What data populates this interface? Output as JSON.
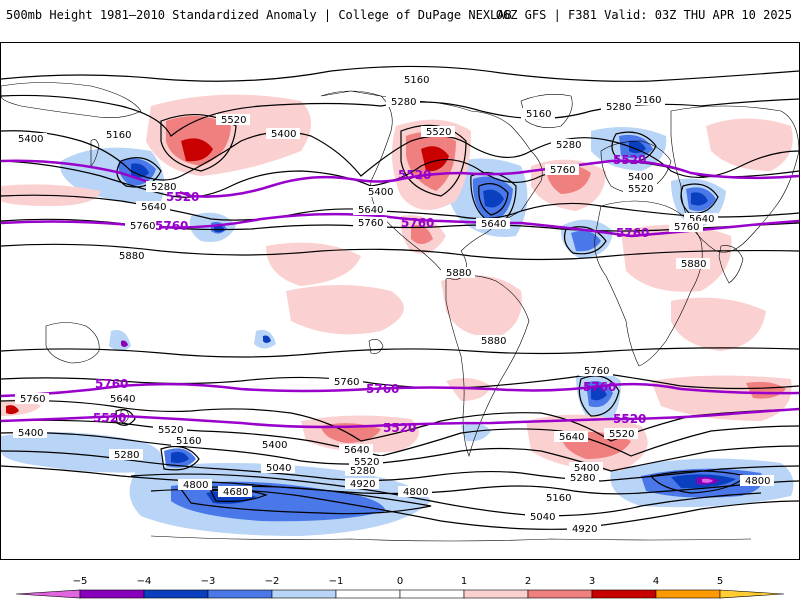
{
  "header": {
    "title": "500mb Height 1981–2010 Standardized Anomaly | College of DuPage NEXLAB",
    "run_info": "06Z GFS | F381 Valid: 03Z THU APR 10 2025"
  },
  "colors": {
    "neg5": "#e066e0",
    "neg4": "#8800bb",
    "neg3": "#0a3fc0",
    "neg2": "#4a78e8",
    "neg1": "#b8d4f6",
    "zero": "#ffffff",
    "pos1": "#fbd0d0",
    "pos2": "#f08080",
    "pos3": "#c80000",
    "pos4": "#ff9a00",
    "pos5": "#ffcc33",
    "contour": "#000000",
    "highlight": "#9900cc",
    "coast": "#000000"
  },
  "legend": {
    "ticks": [
      "−5",
      "−4",
      "−3",
      "−2",
      "−1",
      "0",
      "1",
      "2",
      "3",
      "4",
      "5"
    ]
  },
  "labels": {
    "c5160": "5160",
    "c5280": "5280",
    "c5400": "5400",
    "c5520": "5520",
    "c5640": "5640",
    "c5760": "5760",
    "c5880": "5880",
    "c5040": "5040",
    "c4920": "4920",
    "c4800": "4800",
    "c4680": "4680"
  }
}
